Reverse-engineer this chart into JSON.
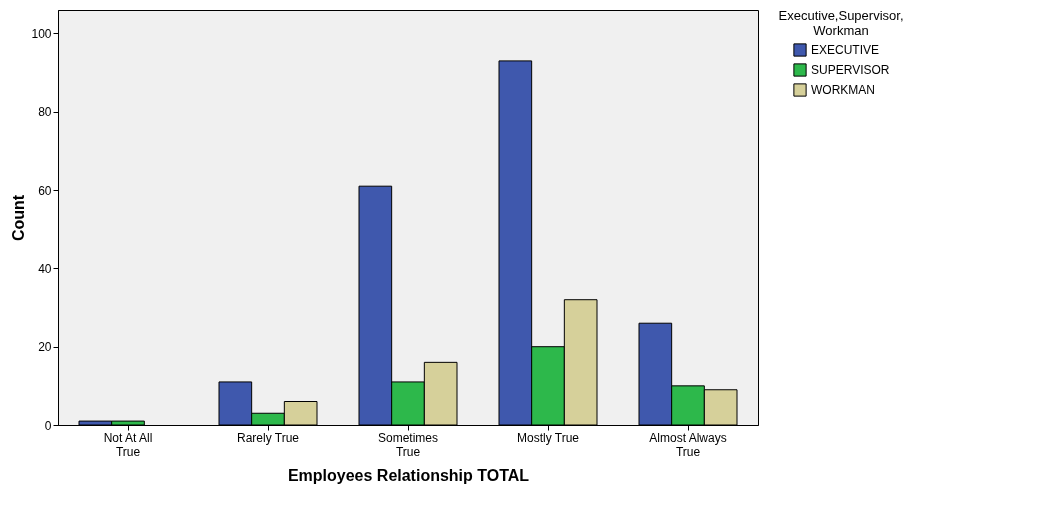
{
  "chart_data": {
    "type": "bar",
    "xlabel": "Employees Relationship TOTAL",
    "ylabel": "Count",
    "legend_title": "Executive,Supervisor, Workman",
    "categories": [
      "Not At All True",
      "Rarely True",
      "Sometimes True",
      "Mostly True",
      "Almost Always True"
    ],
    "series": [
      {
        "name": "EXECUTIVE",
        "color": "#3f58ad",
        "values": [
          1,
          11,
          61,
          93,
          26
        ]
      },
      {
        "name": "SUPERVISOR",
        "color": "#2db84b",
        "values": [
          1,
          3,
          11,
          20,
          10
        ]
      },
      {
        "name": "WORKMAN",
        "color": "#d6d09a",
        "values": [
          null,
          6,
          16,
          32,
          9
        ]
      }
    ],
    "ylim": [
      0,
      106
    ],
    "yticks": [
      0,
      20,
      40,
      60,
      80,
      100
    ],
    "grid": false,
    "legend": "top right"
  }
}
